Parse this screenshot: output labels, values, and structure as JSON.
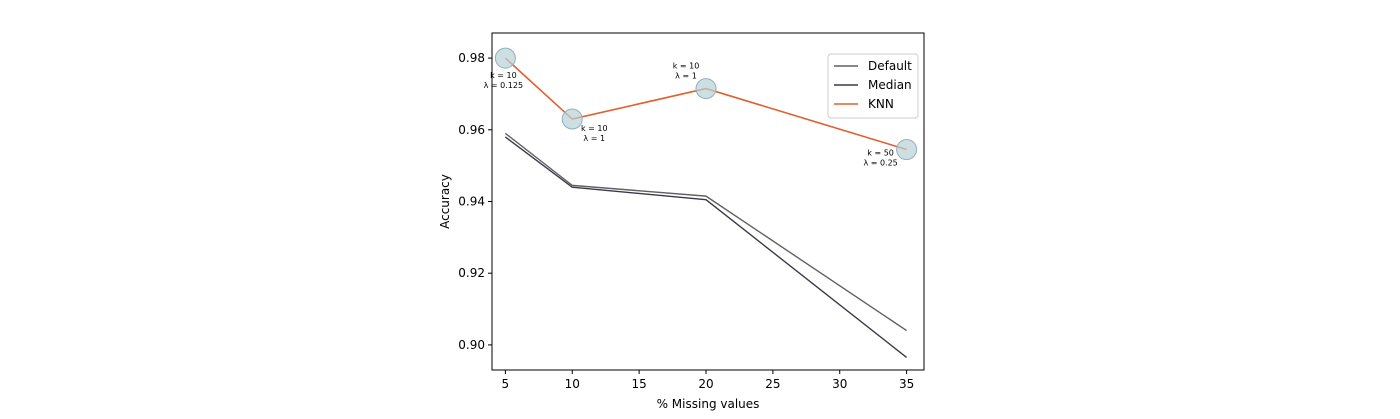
{
  "chart_data": {
    "type": "line",
    "xlabel": "% Missing values",
    "ylabel": "Accuracy",
    "x": [
      5,
      10,
      20,
      35
    ],
    "xlim": [
      4,
      36.3
    ],
    "ylim": [
      0.893,
      0.987
    ],
    "xticks": [
      5,
      10,
      15,
      20,
      25,
      30,
      35
    ],
    "yticks": [
      0.9,
      0.92,
      0.94,
      0.96,
      0.98
    ],
    "ytick_labels": [
      "0.90",
      "0.92",
      "0.94",
      "0.96",
      "0.98"
    ],
    "grid": false,
    "legend_position": "top-right",
    "series": [
      {
        "name": "Default",
        "color": "#616161",
        "values": [
          0.959,
          0.9445,
          0.9415,
          0.904
        ]
      },
      {
        "name": "Median",
        "color": "#3a3a4a",
        "values": [
          0.958,
          0.944,
          0.9405,
          0.8965
        ]
      },
      {
        "name": "KNN",
        "color": "#e06030",
        "values": [
          0.98,
          0.963,
          0.9715,
          0.9545
        ]
      }
    ],
    "highlight_marker_color": "#b9d2d9",
    "annotations": [
      {
        "x": 5,
        "y": 0.98,
        "lines": [
          "k = 10",
          "λ = 0.125"
        ]
      },
      {
        "x": 10,
        "y": 0.963,
        "lines": [
          "k = 10",
          "λ = 1"
        ]
      },
      {
        "x": 20,
        "y": 0.9715,
        "lines": [
          "k = 10",
          "λ = 1"
        ]
      },
      {
        "x": 35,
        "y": 0.9545,
        "lines": [
          "k = 50",
          "λ = 0.25"
        ]
      }
    ]
  }
}
